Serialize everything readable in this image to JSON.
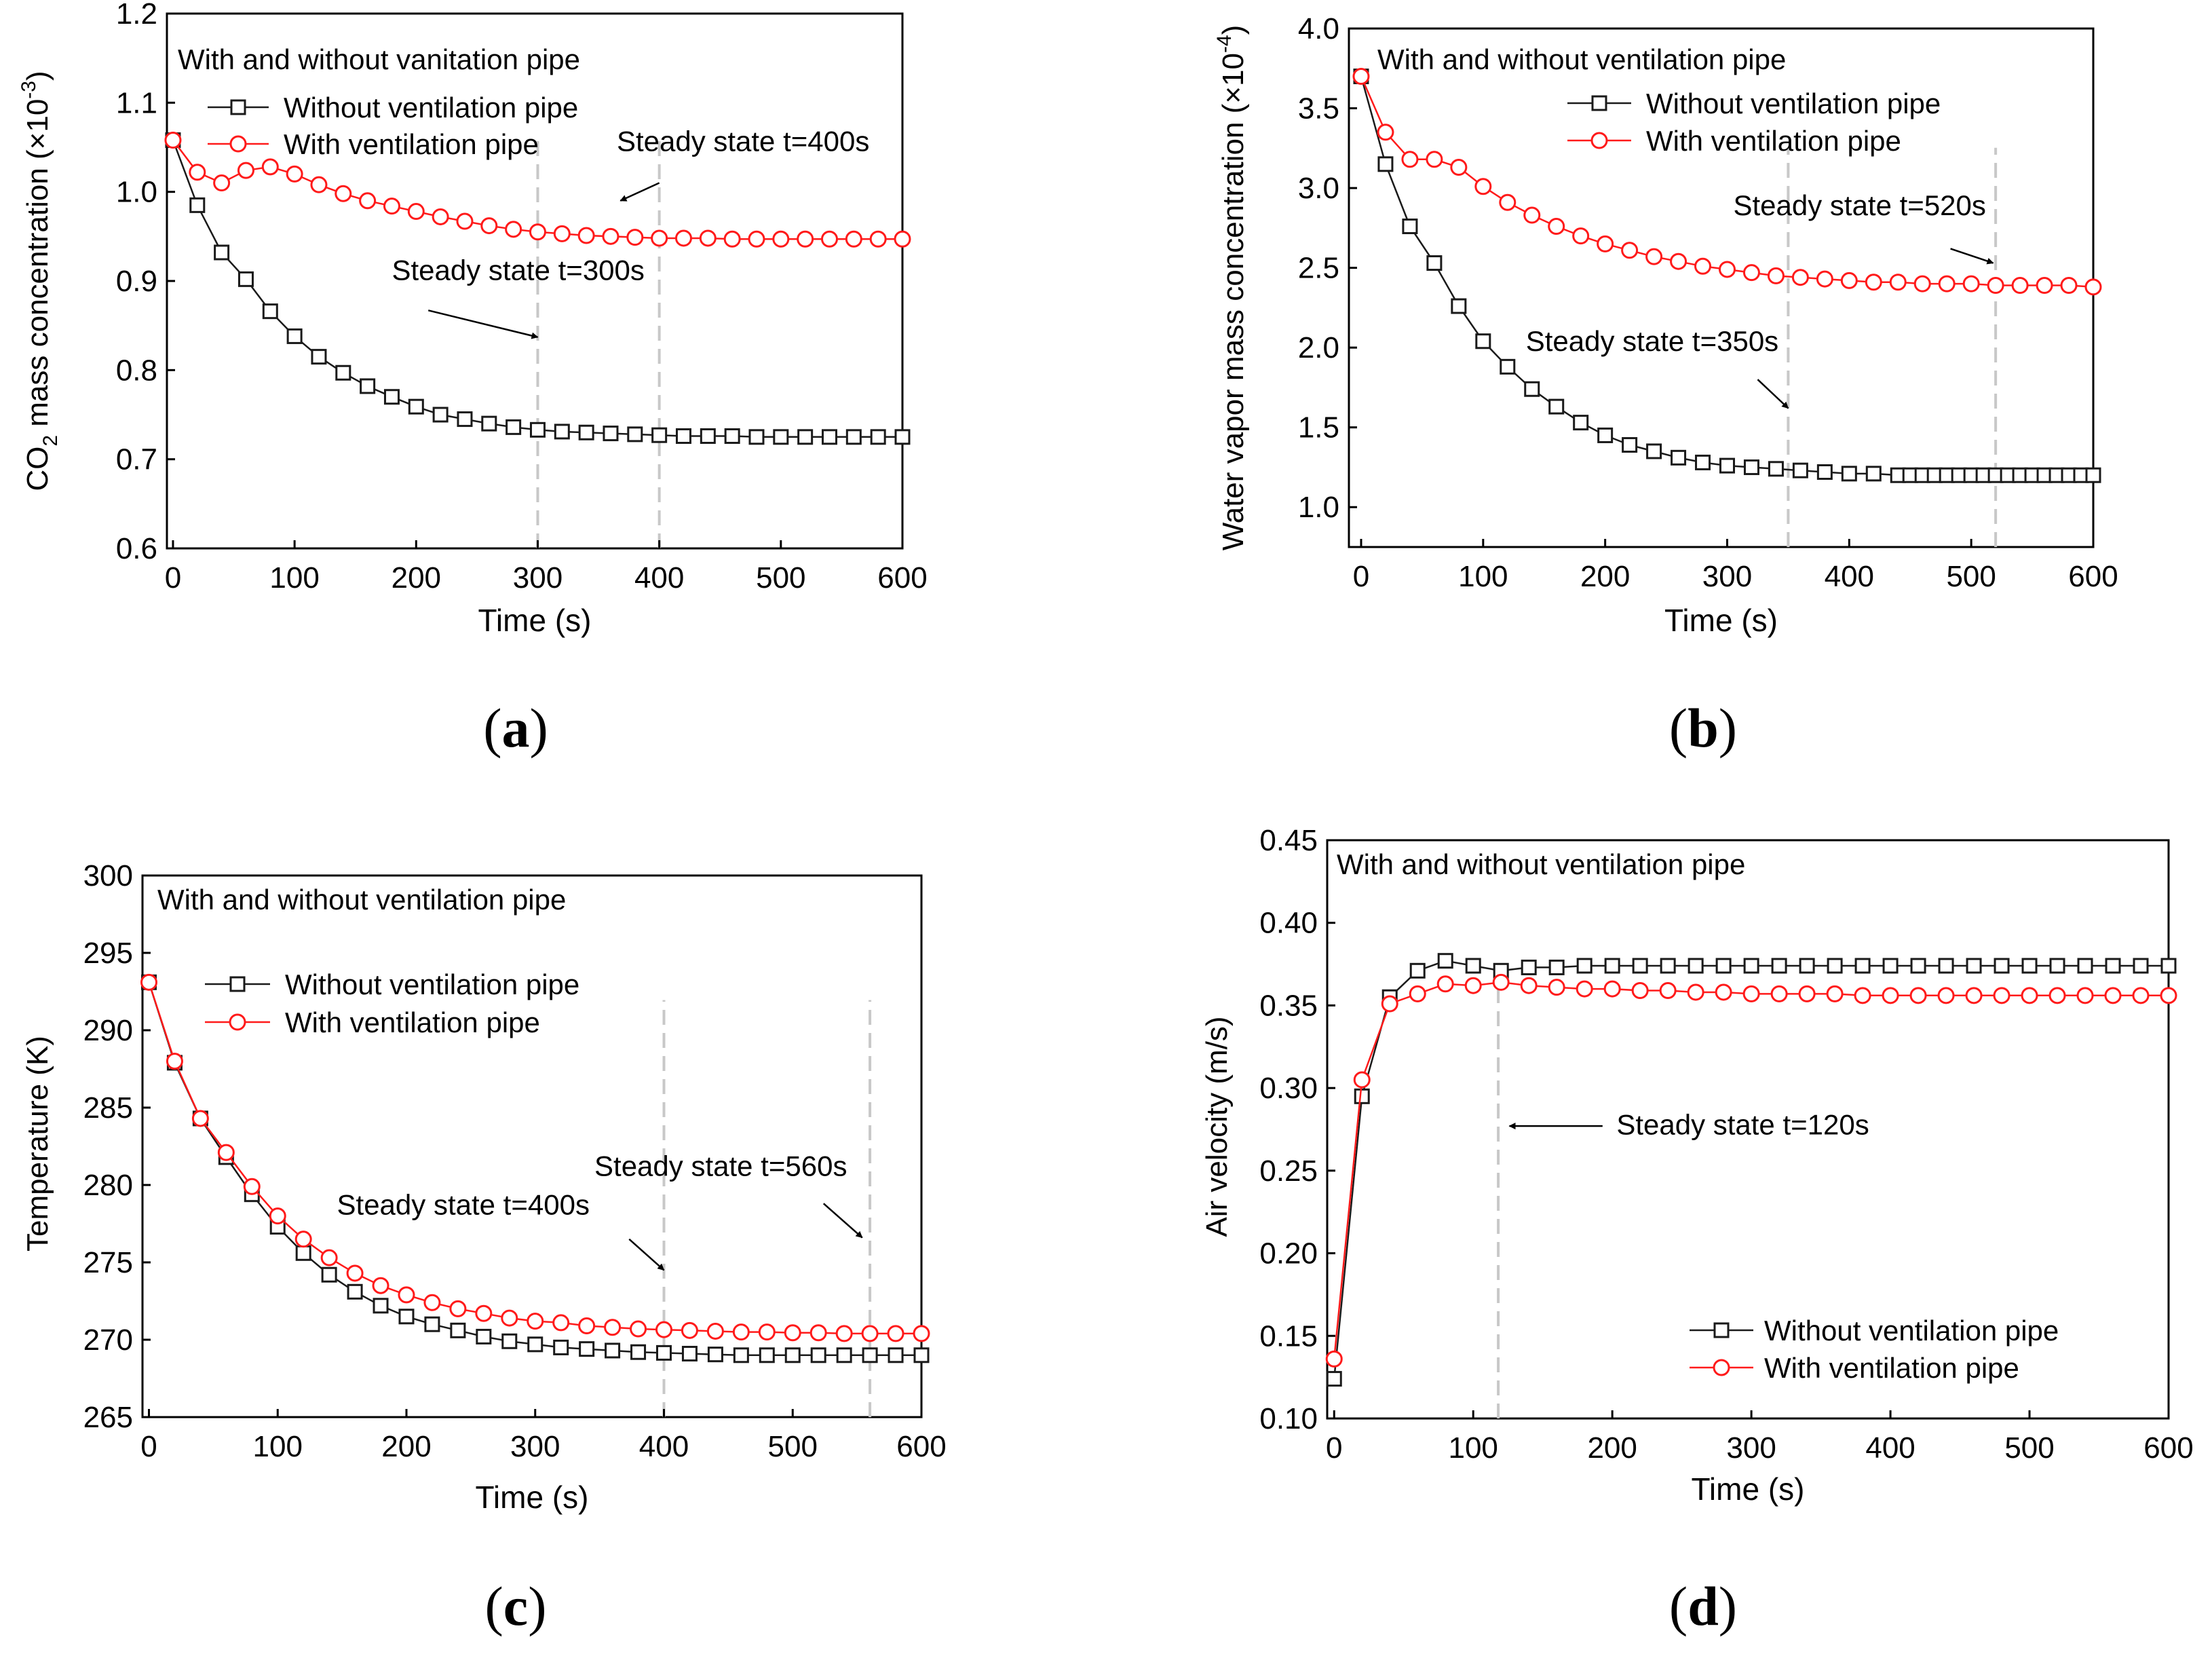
{
  "colors": {
    "without": "#1a1a1a",
    "with": "#ff1a1a",
    "guide": "#c8c8c8",
    "axis": "#000000"
  },
  "chart_data": [
    {
      "id": "a",
      "type": "line",
      "panel_label": "a",
      "panel_label_open": "(",
      "panel_label_close": ")",
      "ylabel_parts": [
        "CO",
        "2",
        " mass concentration (×10",
        "-3",
        ")"
      ],
      "xlabel": "Time (s)",
      "xlim": [
        -5,
        600
      ],
      "ylim": [
        0.6,
        1.2
      ],
      "xticks": [
        0,
        100,
        200,
        300,
        400,
        500,
        600
      ],
      "xtick_labels": [
        "0",
        "100",
        "200",
        "300",
        "400",
        "500",
        "600"
      ],
      "yticks": [
        0.6,
        0.7,
        0.8,
        0.9,
        1.0,
        1.1,
        1.2
      ],
      "ytick_labels": [
        "0.6",
        "0.7",
        "0.8",
        "0.9",
        "1.0",
        "1.1",
        "1.2"
      ],
      "legend_title": "With and without vanitation pipe",
      "legend_position": "top-left",
      "series": [
        {
          "name": "Without ventilation pipe",
          "marker": "square",
          "color": "#1a1a1a",
          "x": [
            0,
            20,
            40,
            60,
            80,
            100,
            120,
            140,
            160,
            180,
            200,
            220,
            240,
            260,
            280,
            300,
            320,
            340,
            360,
            380,
            400,
            420,
            440,
            460,
            480,
            500,
            520,
            540,
            560,
            580,
            600
          ],
          "values": [
            1.058,
            0.985,
            0.932,
            0.902,
            0.866,
            0.838,
            0.815,
            0.797,
            0.782,
            0.77,
            0.759,
            0.75,
            0.745,
            0.74,
            0.736,
            0.733,
            0.731,
            0.73,
            0.729,
            0.728,
            0.727,
            0.726,
            0.726,
            0.726,
            0.725,
            0.725,
            0.725,
            0.725,
            0.725,
            0.725,
            0.725
          ]
        },
        {
          "name": "With ventilation pipe",
          "marker": "circle",
          "color": "#ff1a1a",
          "x": [
            0,
            20,
            40,
            60,
            80,
            100,
            120,
            140,
            160,
            180,
            200,
            220,
            240,
            260,
            280,
            300,
            320,
            340,
            360,
            380,
            400,
            420,
            440,
            460,
            480,
            500,
            520,
            540,
            560,
            580,
            600
          ],
          "values": [
            1.058,
            1.022,
            1.01,
            1.024,
            1.028,
            1.02,
            1.008,
            0.998,
            0.99,
            0.984,
            0.978,
            0.972,
            0.967,
            0.962,
            0.958,
            0.955,
            0.953,
            0.951,
            0.95,
            0.949,
            0.948,
            0.948,
            0.948,
            0.947,
            0.947,
            0.947,
            0.947,
            0.947,
            0.947,
            0.947,
            0.947
          ]
        }
      ],
      "guides": [
        300,
        400
      ],
      "annotations": [
        {
          "text": "Steady state t=400s",
          "x": 365,
          "y": 1.046,
          "arrow_from": [
            400,
            1.01
          ],
          "arrow_to": [
            368,
            0.99
          ]
        },
        {
          "text": "Steady state t=300s",
          "x": 180,
          "y": 0.901,
          "arrow_from": [
            210,
            0.867
          ],
          "arrow_to": [
            300,
            0.837
          ]
        }
      ]
    },
    {
      "id": "b",
      "type": "line",
      "panel_label": "b",
      "panel_label_open": "(",
      "panel_label_close": ")",
      "ylabel_parts": [
        "Water vapor mass concentration (×10",
        "-4",
        ")"
      ],
      "xlabel": "Time (s)",
      "xlim": [
        -10,
        600
      ],
      "ylim": [
        0.75,
        4.0
      ],
      "xticks": [
        0,
        100,
        200,
        300,
        400,
        500,
        600
      ],
      "xtick_labels": [
        "0",
        "100",
        "200",
        "300",
        "400",
        "500",
        "600"
      ],
      "yticks": [
        1.0,
        1.5,
        2.0,
        2.5,
        3.0,
        3.5,
        4.0
      ],
      "ytick_labels": [
        "1.0",
        "1.5",
        "2.0",
        "2.5",
        "3.0",
        "3.5",
        "4.0"
      ],
      "legend_title": "With and without ventilation pipe",
      "legend_position": "top-right",
      "series": [
        {
          "name": "Without ventilation pipe",
          "marker": "square",
          "color": "#1a1a1a",
          "x": [
            0,
            20,
            40,
            60,
            80,
            100,
            120,
            140,
            160,
            180,
            200,
            220,
            240,
            260,
            280,
            300,
            320,
            340,
            360,
            380,
            400,
            420,
            440,
            450,
            460,
            470,
            480,
            490,
            500,
            510,
            520,
            530,
            540,
            550,
            560,
            570,
            580,
            590,
            600
          ],
          "values": [
            3.7,
            3.15,
            2.76,
            2.53,
            2.26,
            2.04,
            1.88,
            1.74,
            1.63,
            1.53,
            1.45,
            1.39,
            1.35,
            1.31,
            1.28,
            1.26,
            1.25,
            1.24,
            1.23,
            1.22,
            1.21,
            1.21,
            1.2,
            1.2,
            1.2,
            1.2,
            1.2,
            1.2,
            1.2,
            1.2,
            1.2,
            1.2,
            1.2,
            1.2,
            1.2,
            1.2,
            1.2,
            1.2,
            1.2
          ]
        },
        {
          "name": "With ventilation pipe",
          "marker": "circle",
          "color": "#ff1a1a",
          "x": [
            0,
            20,
            40,
            60,
            80,
            100,
            120,
            140,
            160,
            180,
            200,
            220,
            240,
            260,
            280,
            300,
            320,
            340,
            360,
            380,
            400,
            420,
            440,
            460,
            480,
            500,
            520,
            540,
            560,
            580,
            600
          ],
          "values": [
            3.7,
            3.35,
            3.18,
            3.18,
            3.13,
            3.01,
            2.91,
            2.83,
            2.76,
            2.7,
            2.65,
            2.61,
            2.57,
            2.54,
            2.51,
            2.49,
            2.47,
            2.45,
            2.44,
            2.43,
            2.42,
            2.41,
            2.41,
            2.4,
            2.4,
            2.4,
            2.39,
            2.39,
            2.39,
            2.39,
            2.38
          ]
        }
      ],
      "guides": [
        350,
        520
      ],
      "annotations": [
        {
          "text": "Steady state t=520s",
          "x": 305,
          "y": 2.83,
          "arrow_from": [
            483,
            2.62
          ],
          "arrow_to": [
            518,
            2.53
          ]
        },
        {
          "text": "Steady state t=350s",
          "x": 135,
          "y": 1.98,
          "arrow_from": [
            325,
            1.8
          ],
          "arrow_to": [
            350,
            1.62
          ]
        }
      ]
    },
    {
      "id": "c",
      "type": "line",
      "panel_label": "c",
      "panel_label_open": "(",
      "panel_label_close": ")",
      "ylabel_parts": [
        "Temperature (K)"
      ],
      "xlabel": "Time (s)",
      "xlim": [
        -5,
        600
      ],
      "ylim": [
        265,
        300
      ],
      "xticks": [
        0,
        100,
        200,
        300,
        400,
        500,
        600
      ],
      "xtick_labels": [
        "0",
        "100",
        "200",
        "300",
        "400",
        "500",
        "600"
      ],
      "yticks": [
        265,
        270,
        275,
        280,
        285,
        290,
        295,
        300
      ],
      "ytick_labels": [
        "265",
        "270",
        "275",
        "280",
        "285",
        "290",
        "295",
        "300"
      ],
      "legend_title": "With and without ventilation pipe",
      "legend_position": "top-left",
      "series": [
        {
          "name": "Without ventilation pipe",
          "marker": "square",
          "color": "#1a1a1a",
          "x": [
            0,
            20,
            40,
            60,
            80,
            100,
            120,
            140,
            160,
            180,
            200,
            220,
            240,
            260,
            280,
            300,
            320,
            340,
            360,
            380,
            400,
            420,
            440,
            460,
            480,
            500,
            520,
            540,
            560,
            580,
            600
          ],
          "values": [
            293.1,
            287.9,
            284.3,
            281.8,
            279.4,
            277.3,
            275.6,
            274.2,
            273.1,
            272.2,
            271.5,
            271.0,
            270.6,
            270.2,
            269.9,
            269.7,
            269.5,
            269.4,
            269.3,
            269.2,
            269.15,
            269.1,
            269.05,
            269.0,
            269.0,
            269.0,
            269.0,
            269.0,
            269.0,
            269.0,
            269.0
          ]
        },
        {
          "name": "With ventilation pipe",
          "marker": "circle",
          "color": "#ff1a1a",
          "x": [
            0,
            20,
            40,
            60,
            80,
            100,
            120,
            140,
            160,
            180,
            200,
            220,
            240,
            260,
            280,
            300,
            320,
            340,
            360,
            380,
            400,
            420,
            440,
            460,
            480,
            500,
            520,
            540,
            560,
            580,
            600
          ],
          "values": [
            293.1,
            288.0,
            284.3,
            282.1,
            279.9,
            278.0,
            276.5,
            275.3,
            274.3,
            273.5,
            272.9,
            272.4,
            272.0,
            271.7,
            271.4,
            271.2,
            271.1,
            270.9,
            270.8,
            270.7,
            270.65,
            270.6,
            270.55,
            270.5,
            270.5,
            270.45,
            270.45,
            270.4,
            270.4,
            270.4,
            270.4
          ]
        }
      ],
      "guides": [
        400,
        560
      ],
      "annotations": [
        {
          "text": "Steady state t=560s",
          "x": 346,
          "y": 280.6,
          "arrow_from": [
            524,
            278.8
          ],
          "arrow_to": [
            554,
            276.6
          ]
        },
        {
          "text": "Steady state t=400s",
          "x": 146,
          "y": 278.1,
          "arrow_from": [
            373,
            276.5
          ],
          "arrow_to": [
            400,
            274.5
          ]
        }
      ]
    },
    {
      "id": "d",
      "type": "line",
      "panel_label": "d",
      "panel_label_open": "(",
      "panel_label_close": ")",
      "ylabel_parts": [
        "Air velocity (m/s)"
      ],
      "xlabel": "Time (s)",
      "xlim": [
        -5,
        600
      ],
      "ylim": [
        0.1,
        0.45
      ],
      "xticks": [
        0,
        100,
        200,
        300,
        400,
        500,
        600
      ],
      "xtick_labels": [
        "0",
        "100",
        "200",
        "300",
        "400",
        "500",
        "600"
      ],
      "yticks": [
        0.1,
        0.15,
        0.2,
        0.25,
        0.3,
        0.35,
        0.4,
        0.45
      ],
      "ytick_labels": [
        "0.10",
        "0.15",
        "0.20",
        "0.25",
        "0.30",
        "0.35",
        "0.40",
        "0.45"
      ],
      "legend_title": "With and without ventilation pipe",
      "legend_position": "bottom-right",
      "series": [
        {
          "name": "Without ventilation pipe",
          "marker": "square",
          "color": "#1a1a1a",
          "x": [
            0,
            20,
            40,
            60,
            80,
            100,
            120,
            140,
            160,
            180,
            200,
            220,
            240,
            260,
            280,
            300,
            320,
            340,
            360,
            380,
            400,
            420,
            440,
            460,
            480,
            500,
            520,
            540,
            560,
            580,
            600
          ],
          "values": [
            0.124,
            0.295,
            0.355,
            0.371,
            0.377,
            0.374,
            0.371,
            0.373,
            0.373,
            0.374,
            0.374,
            0.374,
            0.374,
            0.374,
            0.374,
            0.374,
            0.374,
            0.374,
            0.374,
            0.374,
            0.374,
            0.374,
            0.374,
            0.374,
            0.374,
            0.374,
            0.374,
            0.374,
            0.374,
            0.374,
            0.374
          ]
        },
        {
          "name": "With ventilation pipe",
          "marker": "circle",
          "color": "#ff1a1a",
          "x": [
            0,
            20,
            40,
            60,
            80,
            100,
            120,
            140,
            160,
            180,
            200,
            220,
            240,
            260,
            280,
            300,
            320,
            340,
            360,
            380,
            400,
            420,
            440,
            460,
            480,
            500,
            520,
            540,
            560,
            580,
            600
          ],
          "values": [
            0.136,
            0.305,
            0.351,
            0.357,
            0.363,
            0.362,
            0.364,
            0.362,
            0.361,
            0.36,
            0.36,
            0.359,
            0.359,
            0.358,
            0.358,
            0.357,
            0.357,
            0.357,
            0.357,
            0.356,
            0.356,
            0.356,
            0.356,
            0.356,
            0.356,
            0.356,
            0.356,
            0.356,
            0.356,
            0.356,
            0.356
          ]
        }
      ],
      "guides": [
        118
      ],
      "annotations": [
        {
          "text": "Steady state t=120s",
          "x": 203,
          "y": 0.272,
          "arrow_from": [
            193,
            0.277
          ],
          "arrow_to": [
            126,
            0.277
          ]
        }
      ]
    }
  ]
}
